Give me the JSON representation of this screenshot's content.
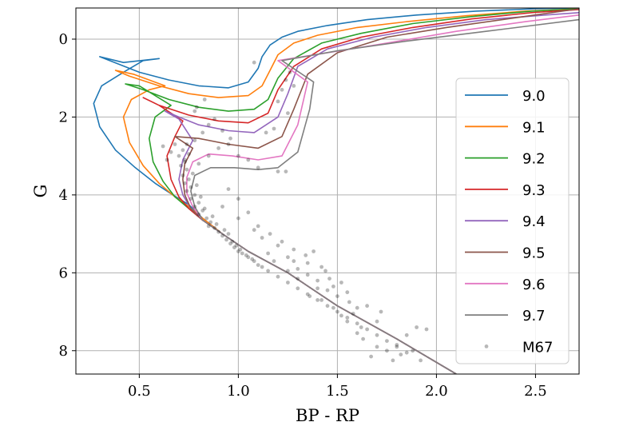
{
  "chart_data": {
    "type": "line",
    "title": "",
    "xlabel": "BP - RP",
    "ylabel": "G",
    "xlim": [
      0.18,
      2.72
    ],
    "ylim": [
      8.6,
      -0.8
    ],
    "y_inverted": true,
    "grid": true,
    "legend_position": "center-right",
    "xticks": [
      0.5,
      1.0,
      1.5,
      2.0,
      2.5
    ],
    "xtick_labels": [
      "0.5",
      "1.0",
      "1.5",
      "2.0",
      "2.5"
    ],
    "yticks": [
      0,
      2,
      4,
      6,
      8
    ],
    "ytick_labels": [
      "0",
      "2",
      "4",
      "6",
      "8"
    ],
    "series": [
      {
        "name": "9.0",
        "color": "#1f77b4",
        "x": [
          2.1,
          1.8,
          1.5,
          1.25,
          1.05,
          0.92,
          0.82,
          0.75,
          0.67,
          0.58,
          0.48,
          0.38,
          0.3,
          0.27,
          0.31,
          0.42,
          0.52,
          0.6,
          0.42,
          0.3,
          0.35,
          0.5,
          0.65,
          0.8,
          0.95,
          1.05,
          1.1,
          1.12,
          1.16,
          1.22,
          1.3,
          1.45,
          1.65,
          1.9,
          2.2,
          2.5,
          2.72
        ],
        "y": [
          8.6,
          7.7,
          6.85,
          6.0,
          5.45,
          5.0,
          4.6,
          4.25,
          4.0,
          3.7,
          3.3,
          2.85,
          2.25,
          1.65,
          1.2,
          0.85,
          0.55,
          0.5,
          0.6,
          0.45,
          0.55,
          0.85,
          1.05,
          1.2,
          1.25,
          1.1,
          0.75,
          0.45,
          0.15,
          -0.05,
          -0.2,
          -0.35,
          -0.5,
          -0.62,
          -0.72,
          -0.78,
          -0.8
        ]
      },
      {
        "name": "9.1",
        "color": "#ff7f0e",
        "x": [
          2.1,
          1.8,
          1.5,
          1.25,
          1.05,
          0.92,
          0.82,
          0.75,
          0.68,
          0.6,
          0.52,
          0.45,
          0.42,
          0.46,
          0.55,
          0.63,
          0.47,
          0.38,
          0.45,
          0.6,
          0.75,
          0.9,
          1.05,
          1.12,
          1.16,
          1.2,
          1.28,
          1.4,
          1.6,
          1.85,
          2.15,
          2.45,
          2.72
        ],
        "y": [
          8.6,
          7.7,
          6.85,
          6.0,
          5.45,
          5.0,
          4.6,
          4.3,
          4.05,
          3.7,
          3.25,
          2.65,
          2.0,
          1.55,
          1.3,
          1.2,
          0.9,
          0.8,
          0.95,
          1.2,
          1.4,
          1.5,
          1.45,
          1.2,
          0.8,
          0.4,
          0.1,
          -0.1,
          -0.3,
          -0.45,
          -0.6,
          -0.72,
          -0.78
        ]
      },
      {
        "name": "9.2",
        "color": "#2ca02c",
        "x": [
          2.1,
          1.8,
          1.5,
          1.25,
          1.05,
          0.92,
          0.82,
          0.75,
          0.68,
          0.62,
          0.57,
          0.55,
          0.58,
          0.66,
          0.5,
          0.43,
          0.52,
          0.65,
          0.8,
          0.95,
          1.08,
          1.15,
          1.2,
          1.28,
          1.42,
          1.62,
          1.88,
          2.18,
          2.48,
          2.72
        ],
        "y": [
          8.6,
          7.7,
          6.85,
          6.0,
          5.45,
          5.0,
          4.65,
          4.35,
          4.05,
          3.65,
          3.15,
          2.55,
          2.0,
          1.7,
          1.2,
          1.15,
          1.3,
          1.55,
          1.75,
          1.85,
          1.8,
          1.55,
          1.0,
          0.5,
          0.1,
          -0.15,
          -0.4,
          -0.58,
          -0.72,
          -0.78
        ]
      },
      {
        "name": "9.3",
        "color": "#d62728",
        "x": [
          2.1,
          1.8,
          1.5,
          1.25,
          1.05,
          0.92,
          0.82,
          0.75,
          0.7,
          0.66,
          0.64,
          0.68,
          0.72,
          0.6,
          0.52,
          0.6,
          0.75,
          0.9,
          1.05,
          1.15,
          1.2,
          1.28,
          1.42,
          1.62,
          1.88,
          2.18,
          2.48,
          2.72
        ],
        "y": [
          8.6,
          7.7,
          6.85,
          6.0,
          5.45,
          5.0,
          4.65,
          4.35,
          4.05,
          3.6,
          3.0,
          2.5,
          2.1,
          1.7,
          1.5,
          1.7,
          1.95,
          2.1,
          2.15,
          1.9,
          1.3,
          0.7,
          0.25,
          -0.05,
          -0.3,
          -0.52,
          -0.68,
          -0.76
        ]
      },
      {
        "name": "9.4",
        "color": "#9467bd",
        "x": [
          2.1,
          1.8,
          1.5,
          1.25,
          1.05,
          0.92,
          0.82,
          0.76,
          0.72,
          0.7,
          0.72,
          0.77,
          0.7,
          0.63,
          0.7,
          0.8,
          0.95,
          1.08,
          1.2,
          1.25,
          1.3,
          1.45,
          1.68,
          1.95,
          2.25,
          2.55,
          2.72
        ],
        "y": [
          8.6,
          7.7,
          6.85,
          6.0,
          5.45,
          5.0,
          4.65,
          4.35,
          4.0,
          3.6,
          3.1,
          2.6,
          2.05,
          1.85,
          2.0,
          2.2,
          2.35,
          2.4,
          2.0,
          1.4,
          0.7,
          0.25,
          -0.05,
          -0.3,
          -0.5,
          -0.62,
          -0.68
        ]
      },
      {
        "name": "9.5",
        "color": "#8c564b",
        "x": [
          2.1,
          1.8,
          1.5,
          1.25,
          1.05,
          0.92,
          0.82,
          0.76,
          0.73,
          0.72,
          0.73,
          0.77,
          0.68,
          0.8,
          0.95,
          1.1,
          1.22,
          1.28,
          1.35,
          1.5,
          1.75,
          2.05,
          2.4,
          2.72
        ],
        "y": [
          8.6,
          7.7,
          6.85,
          6.0,
          5.45,
          5.0,
          4.65,
          4.35,
          4.0,
          3.6,
          3.2,
          2.8,
          2.5,
          2.55,
          2.7,
          2.8,
          2.5,
          1.8,
          0.9,
          0.35,
          -0.05,
          -0.3,
          -0.55,
          -0.78
        ]
      },
      {
        "name": "9.6",
        "color": "#e377c2",
        "x": [
          2.1,
          1.8,
          1.5,
          1.25,
          1.05,
          0.92,
          0.82,
          0.77,
          0.74,
          0.74,
          0.77,
          0.85,
          0.97,
          1.1,
          1.22,
          1.3,
          1.35,
          1.2,
          1.45,
          1.75,
          2.1,
          2.45,
          2.72
        ],
        "y": [
          8.6,
          7.7,
          6.85,
          6.0,
          5.45,
          5.0,
          4.65,
          4.3,
          3.95,
          3.55,
          3.15,
          2.95,
          3.0,
          3.1,
          3.0,
          2.2,
          1.1,
          0.55,
          0.35,
          0.1,
          -0.2,
          -0.45,
          -0.62
        ]
      },
      {
        "name": "9.7",
        "color": "#7f7f7f",
        "x": [
          2.1,
          1.8,
          1.5,
          1.25,
          1.05,
          0.92,
          0.82,
          0.78,
          0.76,
          0.78,
          0.86,
          0.98,
          1.1,
          1.2,
          1.3,
          1.36,
          1.38,
          1.22,
          1.5,
          1.85,
          2.25,
          2.72
        ],
        "y": [
          8.6,
          7.7,
          6.85,
          6.0,
          5.45,
          5.0,
          4.65,
          4.3,
          3.9,
          3.5,
          3.3,
          3.3,
          3.35,
          3.3,
          2.9,
          1.8,
          1.1,
          0.55,
          0.3,
          0.05,
          -0.2,
          -0.5
        ]
      }
    ],
    "scatter": {
      "name": "M67",
      "color": "#000000",
      "points": [
        [
          0.74,
          2.7
        ],
        [
          0.72,
          2.85
        ],
        [
          0.7,
          3.0
        ],
        [
          0.73,
          3.1
        ],
        [
          0.71,
          3.25
        ],
        [
          0.74,
          3.35
        ],
        [
          0.72,
          3.5
        ],
        [
          0.75,
          3.6
        ],
        [
          0.73,
          3.7
        ],
        [
          0.76,
          3.8
        ],
        [
          0.74,
          3.9
        ],
        [
          0.78,
          4.0
        ],
        [
          0.76,
          4.1
        ],
        [
          0.8,
          4.2
        ],
        [
          0.78,
          4.3
        ],
        [
          0.82,
          4.4
        ],
        [
          0.8,
          4.5
        ],
        [
          0.84,
          4.6
        ],
        [
          0.86,
          4.7
        ],
        [
          0.85,
          4.8
        ],
        [
          0.88,
          4.85
        ],
        [
          0.9,
          4.95
        ],
        [
          0.92,
          5.05
        ],
        [
          0.94,
          5.15
        ],
        [
          0.96,
          5.25
        ],
        [
          0.98,
          5.35
        ],
        [
          1.0,
          5.45
        ],
        [
          1.02,
          5.5
        ],
        [
          1.05,
          5.6
        ],
        [
          1.08,
          5.7
        ],
        [
          0.75,
          2.95
        ],
        [
          0.73,
          3.15
        ],
        [
          0.77,
          3.45
        ],
        [
          0.79,
          3.75
        ],
        [
          0.81,
          4.05
        ],
        [
          0.83,
          4.35
        ],
        [
          0.87,
          4.55
        ],
        [
          0.89,
          4.75
        ],
        [
          0.93,
          4.9
        ],
        [
          0.95,
          5.0
        ],
        [
          0.97,
          5.2
        ],
        [
          0.99,
          5.3
        ],
        [
          1.01,
          5.4
        ],
        [
          1.04,
          5.55
        ],
        [
          1.07,
          5.65
        ],
        [
          1.1,
          5.8
        ],
        [
          1.15,
          5.95
        ],
        [
          1.2,
          6.1
        ],
        [
          1.25,
          6.25
        ],
        [
          1.3,
          6.4
        ],
        [
          1.35,
          6.55
        ],
        [
          1.4,
          6.7
        ],
        [
          1.45,
          6.85
        ],
        [
          1.5,
          7.0
        ],
        [
          1.55,
          7.15
        ],
        [
          1.6,
          7.3
        ],
        [
          1.65,
          7.45
        ],
        [
          1.7,
          7.6
        ],
        [
          1.75,
          7.75
        ],
        [
          1.8,
          7.9
        ],
        [
          1.85,
          8.05
        ],
        [
          0.78,
          2.6
        ],
        [
          0.82,
          2.4
        ],
        [
          0.85,
          2.2
        ],
        [
          0.88,
          2.05
        ],
        [
          0.92,
          2.35
        ],
        [
          0.96,
          2.55
        ],
        [
          0.8,
          3.2
        ],
        [
          0.85,
          3.0
        ],
        [
          0.9,
          2.8
        ],
        [
          0.95,
          2.7
        ],
        [
          1.0,
          3.0
        ],
        [
          1.05,
          3.1
        ],
        [
          1.1,
          3.3
        ],
        [
          1.2,
          3.4
        ],
        [
          1.24,
          3.4
        ],
        [
          0.68,
          2.7
        ],
        [
          0.66,
          2.9
        ],
        [
          0.64,
          3.1
        ],
        [
          0.62,
          2.75
        ],
        [
          0.79,
          1.75
        ],
        [
          0.83,
          1.55
        ],
        [
          0.78,
          1.85
        ],
        [
          1.2,
          1.6
        ],
        [
          1.22,
          1.3
        ],
        [
          1.24,
          1.05
        ],
        [
          1.26,
          0.85
        ],
        [
          1.25,
          1.9
        ],
        [
          1.28,
          1.2
        ],
        [
          1.18,
          2.3
        ],
        [
          1.14,
          2.4
        ],
        [
          1.08,
          0.6
        ],
        [
          0.92,
          4.3
        ],
        [
          1.0,
          4.6
        ],
        [
          1.05,
          4.45
        ],
        [
          1.08,
          4.9
        ],
        [
          1.12,
          5.1
        ],
        [
          1.0,
          4.1
        ],
        [
          0.95,
          3.85
        ],
        [
          1.15,
          5.5
        ],
        [
          1.2,
          5.3
        ],
        [
          1.25,
          5.6
        ],
        [
          1.28,
          5.7
        ],
        [
          1.3,
          5.9
        ],
        [
          1.35,
          6.05
        ],
        [
          1.4,
          6.2
        ],
        [
          1.42,
          5.85
        ],
        [
          1.45,
          6.45
        ],
        [
          1.48,
          6.35
        ],
        [
          1.5,
          6.6
        ],
        [
          1.55,
          6.5
        ],
        [
          1.35,
          5.75
        ],
        [
          1.4,
          6.4
        ],
        [
          1.6,
          6.9
        ],
        [
          1.65,
          6.85
        ],
        [
          1.7,
          7.25
        ],
        [
          1.72,
          7.0
        ],
        [
          1.58,
          7.05
        ],
        [
          1.62,
          7.4
        ],
        [
          1.7,
          7.9
        ],
        [
          1.75,
          8.0
        ],
        [
          1.8,
          7.85
        ],
        [
          1.85,
          7.6
        ],
        [
          1.9,
          7.4
        ],
        [
          1.95,
          7.45
        ],
        [
          1.82,
          8.1
        ],
        [
          1.88,
          8.0
        ],
        [
          1.67,
          8.15
        ],
        [
          1.78,
          8.25
        ],
        [
          1.92,
          8.25
        ],
        [
          1.1,
          4.8
        ],
        [
          1.16,
          5.0
        ],
        [
          1.22,
          5.2
        ],
        [
          1.28,
          5.4
        ],
        [
          1.34,
          5.55
        ],
        [
          1.38,
          5.45
        ],
        [
          1.44,
          5.95
        ],
        [
          1.46,
          6.15
        ],
        [
          1.52,
          6.25
        ],
        [
          1.56,
          6.75
        ],
        [
          1.3,
          6.15
        ],
        [
          1.25,
          5.95
        ],
        [
          1.18,
          5.7
        ],
        [
          1.12,
          5.85
        ],
        [
          1.42,
          6.7
        ],
        [
          1.48,
          6.9
        ],
        [
          1.36,
          6.6
        ],
        [
          1.52,
          7.1
        ],
        [
          1.55,
          7.25
        ],
        [
          1.6,
          7.55
        ],
        [
          1.63,
          7.7
        ]
      ]
    }
  }
}
